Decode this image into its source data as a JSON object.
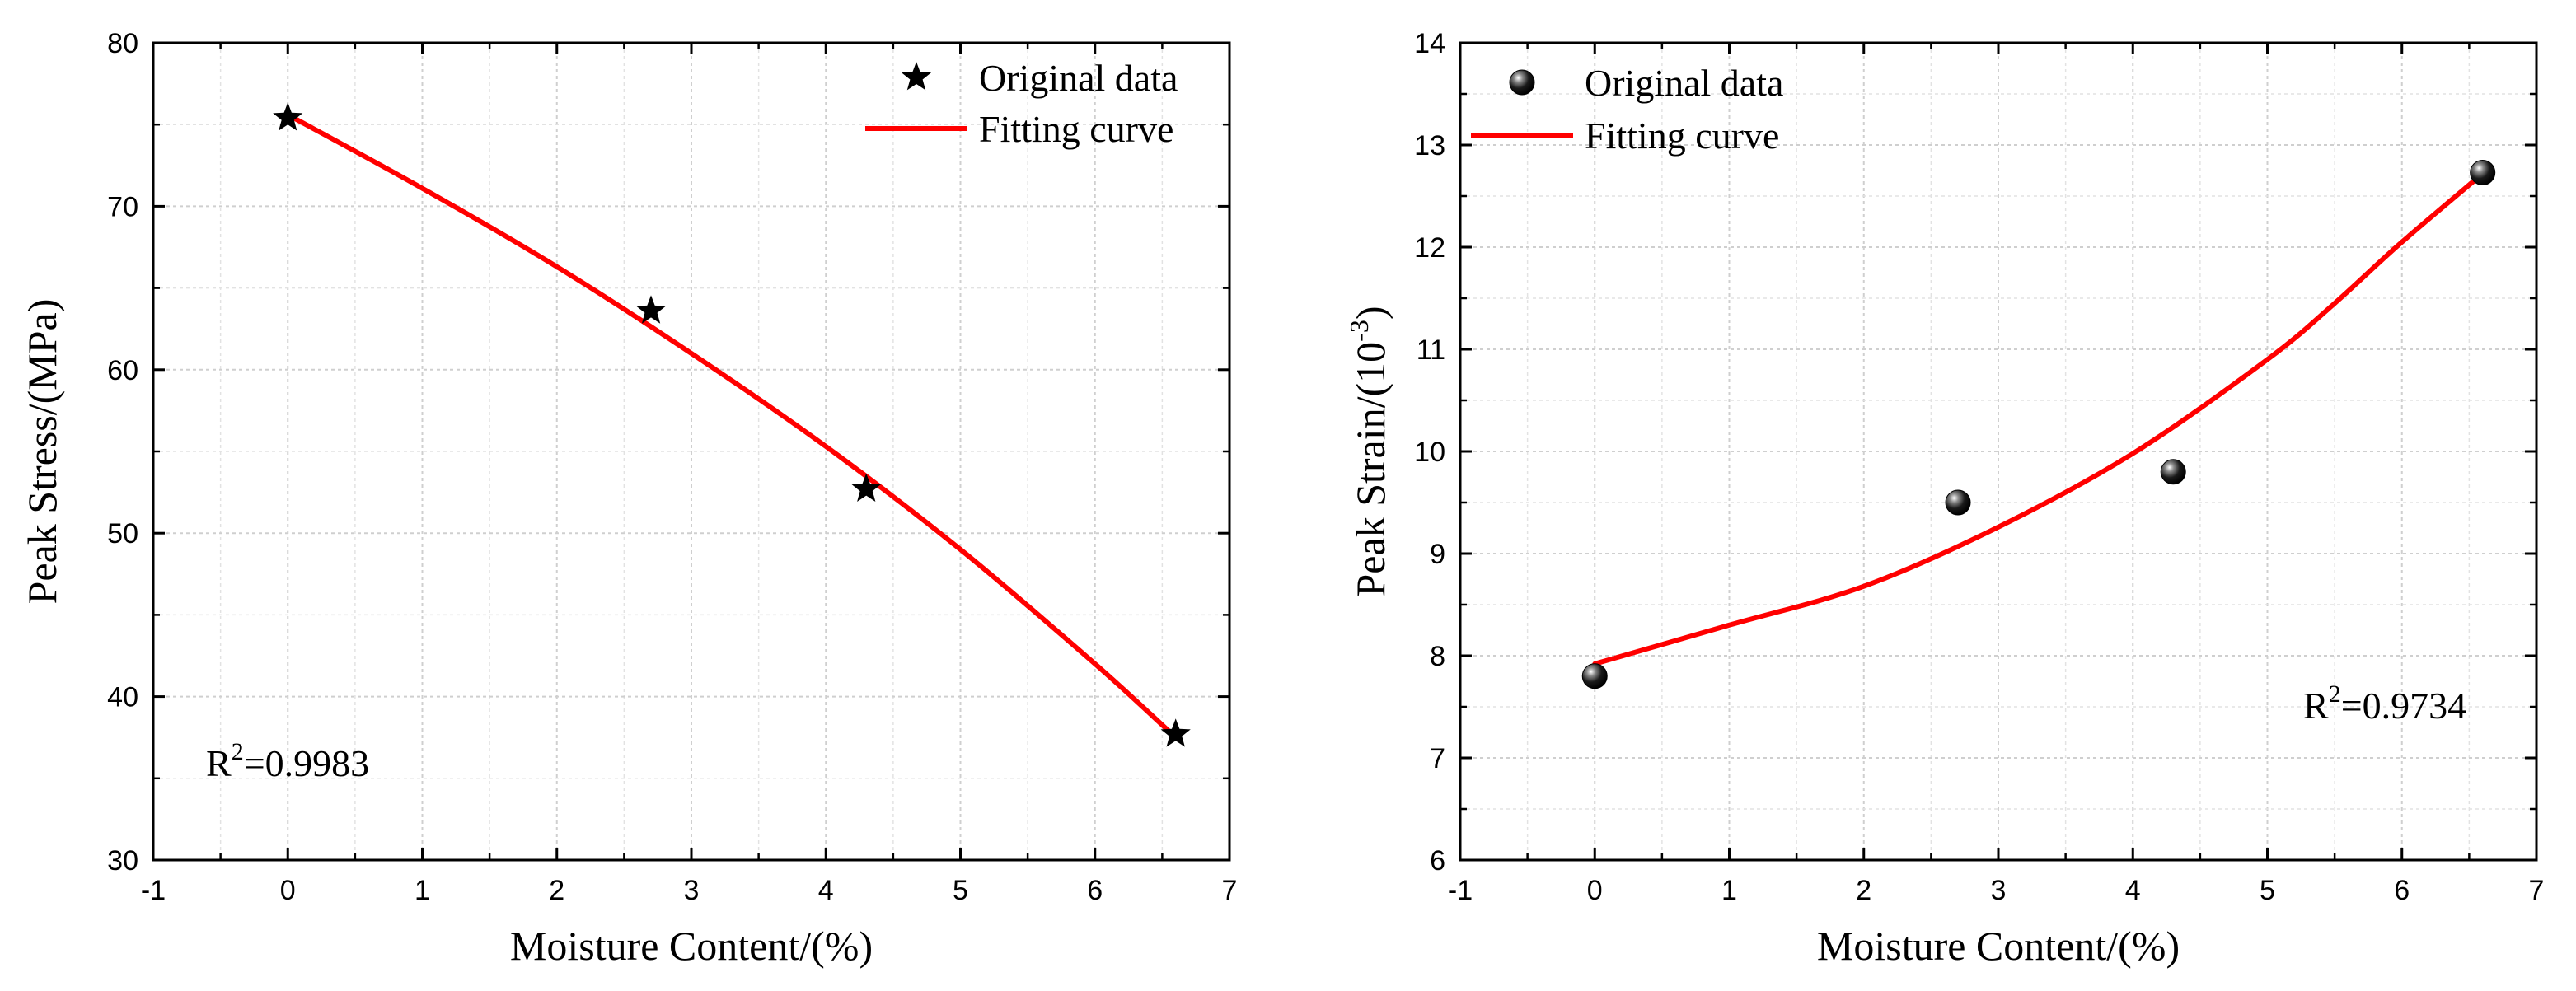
{
  "chart_data": [
    {
      "type": "scatter",
      "xlabel": "Moisture Content/(%)",
      "ylabel": "Peak Stress/(MPa)",
      "xlim": [
        -1,
        7
      ],
      "ylim": [
        30,
        80
      ],
      "x_ticks": [
        -1,
        0,
        1,
        2,
        3,
        4,
        5,
        6,
        7
      ],
      "y_ticks": [
        30,
        40,
        50,
        60,
        70,
        80
      ],
      "grid": true,
      "legend_position": "top-right",
      "series": [
        {
          "name": "Original data",
          "kind": "points",
          "marker": "star",
          "color": "#000000",
          "x": [
            0,
            2.7,
            4.3,
            6.6
          ],
          "y": [
            75.4,
            63.6,
            52.7,
            37.7
          ]
        },
        {
          "name": "Fitting curve",
          "kind": "line",
          "color": "#ff0000",
          "x": [
            0,
            1,
            2,
            3,
            4,
            5,
            6,
            6.6
          ],
          "y": [
            75.6,
            71.1,
            66.3,
            61.0,
            55.3,
            49.0,
            42.0,
            37.5
          ]
        }
      ],
      "annotations": [
        {
          "base": "R",
          "sup": "2",
          "rest": "=0.9983",
          "position": "bottom-left"
        }
      ]
    },
    {
      "type": "scatter",
      "xlabel": "Moisture Content/(%)",
      "ylabel_base": "Peak Strain/(10",
      "ylabel_sup": "-3",
      "ylabel_end": ")",
      "xlim": [
        -1,
        7
      ],
      "ylim": [
        6,
        14
      ],
      "x_ticks": [
        -1,
        0,
        1,
        2,
        3,
        4,
        5,
        6,
        7
      ],
      "y_ticks": [
        6,
        7,
        8,
        9,
        10,
        11,
        12,
        13,
        14
      ],
      "grid": true,
      "legend_position": "top-left",
      "series": [
        {
          "name": "Original data",
          "kind": "points",
          "marker": "sphere",
          "color": "#000000",
          "x": [
            0,
            2.7,
            4.3,
            6.6
          ],
          "y": [
            7.8,
            9.5,
            9.8,
            12.73
          ]
        },
        {
          "name": "Fitting curve",
          "kind": "line",
          "color": "#ff0000",
          "x": [
            0,
            1,
            2,
            3,
            4,
            5,
            5.5,
            6,
            6.6
          ],
          "y": [
            7.92,
            8.3,
            8.68,
            9.26,
            9.98,
            10.9,
            11.45,
            12.05,
            12.72
          ]
        }
      ],
      "annotations": [
        {
          "base": "R",
          "sup": "2",
          "rest": "=0.9734",
          "position": "bottom-right"
        }
      ]
    }
  ]
}
